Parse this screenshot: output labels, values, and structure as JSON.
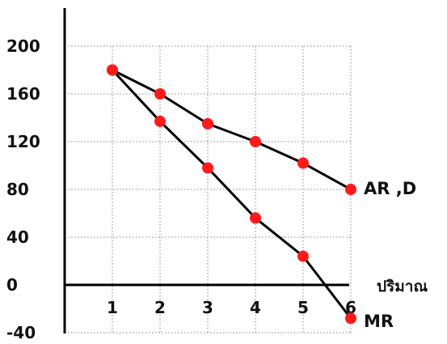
{
  "chart_data": {
    "type": "line",
    "title": "",
    "xlabel": "ปริมาณ",
    "ylabel": "",
    "x": [
      1,
      2,
      3,
      4,
      5,
      6
    ],
    "x_ticks": [
      "1",
      "2",
      "3",
      "4",
      "5",
      "6"
    ],
    "y_ticks": [
      "200",
      "160",
      "120",
      "80",
      "40",
      "0",
      "-40"
    ],
    "y_tick_values": [
      200,
      160,
      120,
      80,
      40,
      0,
      -40
    ],
    "xlim": [
      0,
      6
    ],
    "ylim": [
      -40,
      200
    ],
    "grid": true,
    "grid_style": "dotted",
    "series": [
      {
        "name": "AR ,D",
        "x": [
          1,
          2,
          3,
          4,
          5,
          6
        ],
        "values": [
          180,
          160,
          135,
          120,
          102,
          80
        ]
      },
      {
        "name": "MR",
        "x": [
          1,
          2,
          3,
          4,
          5,
          6
        ],
        "values": [
          180,
          137,
          98,
          56,
          24,
          -28
        ]
      }
    ],
    "marker_color": "#ff1a1a",
    "line_color": "#000000"
  }
}
